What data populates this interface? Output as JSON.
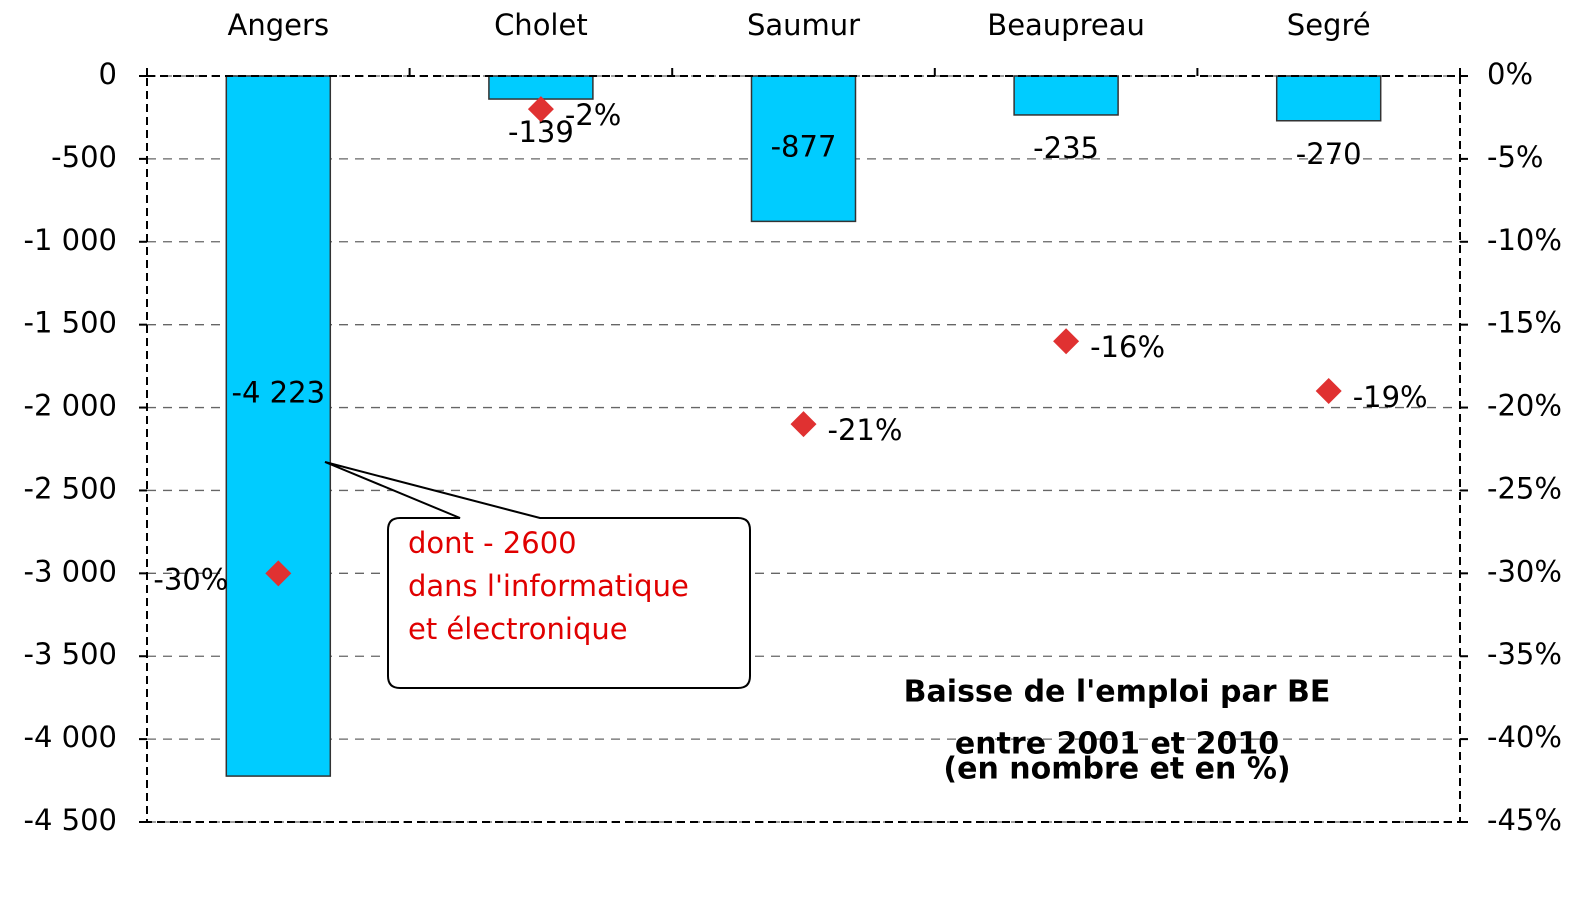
{
  "chart_data": {
    "type": "bar",
    "title": [
      "Baisse de l'emploi par BE",
      "entre 2001 et 2010",
      "(en nombre et en %)"
    ],
    "categories": [
      "Angers",
      "Cholet",
      "Saumur",
      "Beaupreau",
      "Segré"
    ],
    "series": [
      {
        "name": "en nombre",
        "color": "#00ccff",
        "values": [
          -4223,
          -139,
          -877,
          -235,
          -270
        ],
        "value_labels": [
          "-4 223",
          "-139",
          "-877",
          "-235",
          "-270"
        ]
      },
      {
        "name": "en %",
        "type": "scatter",
        "axis": "y2",
        "color": "#e03131",
        "values": [
          -30,
          -2,
          -21,
          -16,
          -19
        ],
        "value_labels": [
          "-30%",
          "-2%",
          "-21%",
          "-16%",
          "-19%"
        ]
      }
    ],
    "ylim": [
      -4500,
      0
    ],
    "yticks": [
      0,
      {
        "value": -500,
        "label": "-500"
      },
      {
        "value": -1000,
        "label": "-1 000"
      },
      {
        "value": -1500,
        "label": "-1 500"
      },
      {
        "value": -2000,
        "label": "-2 000"
      },
      {
        "value": -2500,
        "label": "-2 500"
      },
      {
        "value": -3000,
        "label": "-3 000"
      },
      {
        "value": -3500,
        "label": "-3 500"
      },
      {
        "value": -4000,
        "label": "-4 000"
      },
      {
        "value": -4500,
        "label": "-4 500"
      }
    ],
    "y2lim": [
      -45,
      0
    ],
    "y2ticks": [
      {
        "value": 0,
        "label": "0%"
      },
      {
        "value": -5,
        "label": "-5%"
      },
      {
        "value": -10,
        "label": "-10%"
      },
      {
        "value": -15,
        "label": "-15%"
      },
      {
        "value": -20,
        "label": "-20%"
      },
      {
        "value": -25,
        "label": "-25%"
      },
      {
        "value": -30,
        "label": "-30%"
      },
      {
        "value": -35,
        "label": "-35%"
      },
      {
        "value": -40,
        "label": "-40%"
      },
      {
        "value": -45,
        "label": "-45%"
      }
    ],
    "grid": true,
    "annotation": [
      "dont - 2600",
      "dans l'informatique",
      "et électronique"
    ]
  }
}
